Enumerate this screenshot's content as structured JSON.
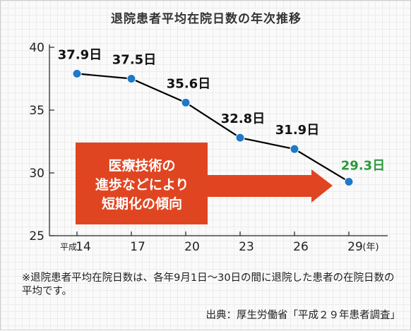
{
  "colors": {
    "line": "#000000",
    "point": "#1f78c8",
    "last_label": "#2a9a3c",
    "arrow": "#e04521",
    "arrow_text": "#ffffff"
  },
  "chart_data": {
    "type": "line",
    "title": "退院患者平均在院日数の年次推移",
    "x_era_label": "平成",
    "x_unit_label": "(年)",
    "x": [
      14,
      17,
      20,
      23,
      26,
      29
    ],
    "x_tick_labels": [
      "14",
      "17",
      "20",
      "23",
      "26",
      "29"
    ],
    "values": [
      37.9,
      37.5,
      35.6,
      32.8,
      31.9,
      29.3
    ],
    "data_labels": [
      "37.9日",
      "37.5日",
      "35.6日",
      "32.8日",
      "31.9日",
      "29.3日"
    ],
    "ylim": [
      25,
      40
    ],
    "y_ticks": [
      25,
      30,
      35,
      40
    ],
    "y_tick_labels": [
      "25",
      "30",
      "35",
      "40"
    ],
    "grid": false,
    "annotation": [
      "医療技術の",
      "進歩などにより",
      "短期化の傾向"
    ]
  },
  "footnote": "※退院患者平均在院日数は、各年9月1日～30日の間に退院した患者の在院日数の平均です。",
  "source": "出典：厚生労働省「平成２９年患者調査」"
}
